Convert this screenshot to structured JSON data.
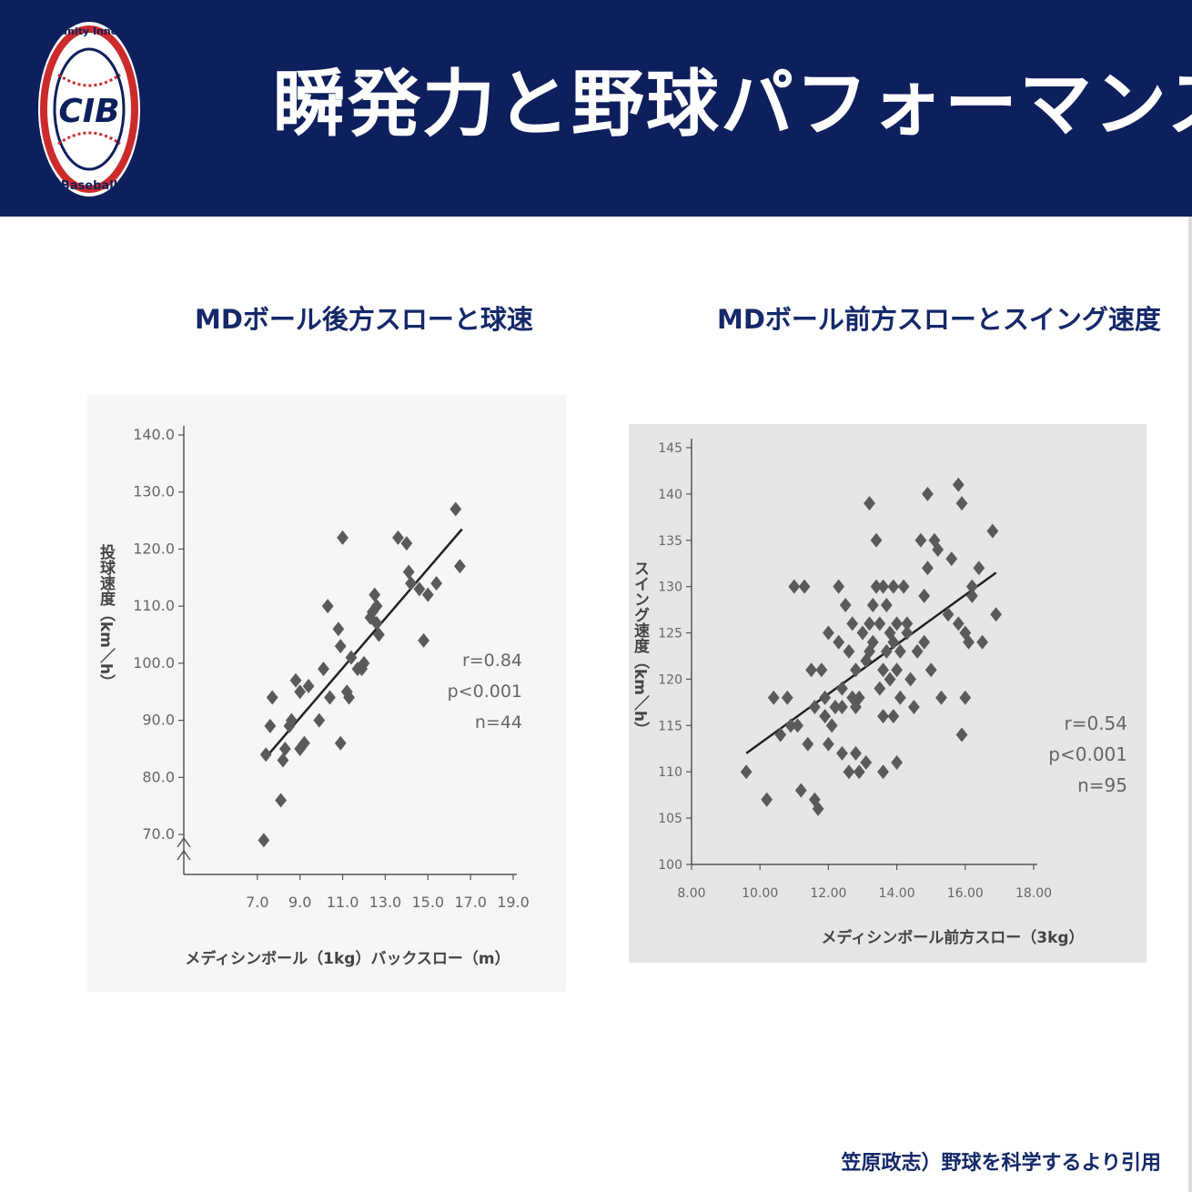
{
  "header": {
    "title": "瞬発力と野球パフォーマンス",
    "logo": {
      "ring_text": "Community Innovation",
      "bottom_text": "Baseball",
      "monogram": "CIB",
      "icon": "baseball-logo-icon"
    }
  },
  "colors": {
    "header_bg": "#0d1f5c",
    "title_color": "#14286a",
    "marker": "#555555"
  },
  "chart_data": [
    {
      "type": "scatter",
      "title": "MDボール後方スローと球速",
      "xlabel": "メディシンボール（1kg）バックスロー（m）",
      "ylabel": "投球速度（km／h）",
      "xticks": [
        "7.0",
        "9.0",
        "11.0",
        "13.0",
        "15.0",
        "17.0",
        "19.0"
      ],
      "yticks": [
        "70.0",
        "80.0",
        "90.0",
        "100.0",
        "110.0",
        "120.0",
        "130.0",
        "140.0"
      ],
      "xlim": [
        5.0,
        19.0
      ],
      "ylim": [
        63.0,
        140.0
      ],
      "grid": false,
      "stats": [
        "r=0.84",
        "p<0.001",
        "n=44"
      ],
      "trendline": [
        [
          7.4,
          83.5
        ],
        [
          16.6,
          123.5
        ]
      ],
      "points": [
        [
          7.3,
          69
        ],
        [
          7.4,
          84
        ],
        [
          7.6,
          89
        ],
        [
          7.7,
          94
        ],
        [
          8.1,
          76
        ],
        [
          8.2,
          83
        ],
        [
          8.3,
          85
        ],
        [
          8.5,
          89
        ],
        [
          8.6,
          90
        ],
        [
          8.8,
          97
        ],
        [
          9.0,
          85
        ],
        [
          9.0,
          95
        ],
        [
          9.2,
          86
        ],
        [
          9.4,
          96
        ],
        [
          9.9,
          90
        ],
        [
          10.1,
          99
        ],
        [
          10.3,
          110
        ],
        [
          10.4,
          94
        ],
        [
          10.8,
          106
        ],
        [
          10.9,
          103
        ],
        [
          10.9,
          86
        ],
        [
          11.0,
          122
        ],
        [
          11.2,
          95
        ],
        [
          11.3,
          94
        ],
        [
          11.4,
          101
        ],
        [
          11.7,
          99
        ],
        [
          11.9,
          99
        ],
        [
          12.0,
          100
        ],
        [
          12.3,
          108
        ],
        [
          12.5,
          112
        ],
        [
          12.6,
          107
        ],
        [
          12.6,
          110
        ],
        [
          12.7,
          105
        ],
        [
          13.6,
          122
        ],
        [
          14.0,
          121
        ],
        [
          14.1,
          116
        ],
        [
          14.2,
          114
        ],
        [
          14.6,
          113
        ],
        [
          14.8,
          104
        ],
        [
          15.0,
          112
        ],
        [
          15.4,
          114
        ],
        [
          16.3,
          127
        ],
        [
          16.5,
          117
        ],
        [
          12.4,
          109
        ]
      ]
    },
    {
      "type": "scatter",
      "title": "MDボール前方スローとスイング速度",
      "xlabel": "メディシンボール前方スロー（3kg）",
      "ylabel": "スイング速度（km／h）",
      "xticks": [
        "8.00",
        "10.00",
        "12.00",
        "14.00",
        "16.00",
        "18.00"
      ],
      "yticks": [
        "100",
        "105",
        "110",
        "115",
        "120",
        "125",
        "130",
        "135",
        "140",
        "145"
      ],
      "xlim": [
        8.0,
        18.0
      ],
      "ylim": [
        100,
        145
      ],
      "grid": false,
      "stats": [
        "r=0.54",
        "p<0.001",
        "n=95"
      ],
      "trendline": [
        [
          9.6,
          112
        ],
        [
          16.9,
          131.5
        ]
      ],
      "points": [
        [
          9.6,
          110
        ],
        [
          10.2,
          107
        ],
        [
          10.4,
          118
        ],
        [
          10.6,
          114
        ],
        [
          10.8,
          118
        ],
        [
          10.9,
          115
        ],
        [
          11.0,
          130
        ],
        [
          11.1,
          115
        ],
        [
          11.3,
          130
        ],
        [
          11.4,
          113
        ],
        [
          11.2,
          108
        ],
        [
          11.5,
          121
        ],
        [
          11.6,
          107
        ],
        [
          11.6,
          117
        ],
        [
          11.7,
          106
        ],
        [
          11.8,
          121
        ],
        [
          11.9,
          118
        ],
        [
          11.9,
          116
        ],
        [
          12.0,
          125
        ],
        [
          12.0,
          113
        ],
        [
          12.1,
          115
        ],
        [
          12.2,
          117
        ],
        [
          12.3,
          124
        ],
        [
          12.3,
          130
        ],
        [
          12.4,
          112
        ],
        [
          12.4,
          117
        ],
        [
          12.5,
          128
        ],
        [
          12.6,
          123
        ],
        [
          12.6,
          110
        ],
        [
          12.7,
          126
        ],
        [
          12.7,
          118
        ],
        [
          12.8,
          121
        ],
        [
          12.8,
          112
        ],
        [
          12.9,
          118
        ],
        [
          12.9,
          110
        ],
        [
          13.0,
          125
        ],
        [
          13.1,
          122
        ],
        [
          13.1,
          111
        ],
        [
          13.2,
          139
        ],
        [
          13.2,
          123
        ],
        [
          13.3,
          124
        ],
        [
          13.3,
          128
        ],
        [
          13.4,
          135
        ],
        [
          13.4,
          130
        ],
        [
          13.5,
          119
        ],
        [
          13.5,
          126
        ],
        [
          13.6,
          130
        ],
        [
          13.6,
          116
        ],
        [
          13.6,
          110
        ],
        [
          13.7,
          128
        ],
        [
          13.7,
          123
        ],
        [
          13.8,
          125
        ],
        [
          13.8,
          120
        ],
        [
          13.9,
          130
        ],
        [
          13.9,
          116
        ],
        [
          14.0,
          126
        ],
        [
          14.0,
          121
        ],
        [
          14.0,
          111
        ],
        [
          14.1,
          123
        ],
        [
          14.1,
          118
        ],
        [
          14.2,
          130
        ],
        [
          14.3,
          126
        ],
        [
          14.3,
          125
        ],
        [
          14.4,
          120
        ],
        [
          14.5,
          117
        ],
        [
          14.6,
          123
        ],
        [
          14.7,
          135
        ],
        [
          14.8,
          124
        ],
        [
          14.9,
          140
        ],
        [
          14.9,
          132
        ],
        [
          15.0,
          121
        ],
        [
          15.1,
          135
        ],
        [
          15.2,
          134
        ],
        [
          15.3,
          118
        ],
        [
          15.5,
          127
        ],
        [
          15.6,
          133
        ],
        [
          15.8,
          141
        ],
        [
          15.9,
          139
        ],
        [
          15.9,
          114
        ],
        [
          16.0,
          125
        ],
        [
          16.0,
          118
        ],
        [
          16.1,
          124
        ],
        [
          16.2,
          129
        ],
        [
          16.2,
          130
        ],
        [
          16.4,
          132
        ],
        [
          16.5,
          124
        ],
        [
          16.8,
          136
        ],
        [
          16.9,
          127
        ],
        [
          13.9,
          124
        ],
        [
          13.2,
          126
        ],
        [
          12.8,
          117
        ],
        [
          13.6,
          121
        ],
        [
          15.8,
          126
        ],
        [
          14.8,
          129
        ],
        [
          12.4,
          119
        ]
      ]
    }
  ],
  "footer": {
    "citation": "笠原政志）野球を科学するより引用"
  }
}
